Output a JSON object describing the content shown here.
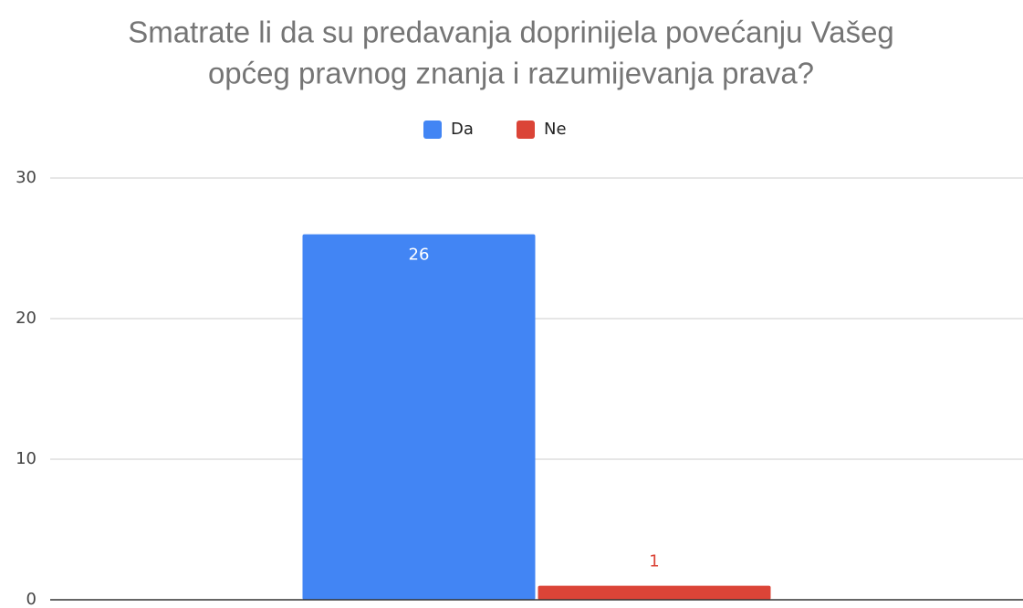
{
  "chart_data": {
    "type": "bar",
    "title": [
      "Smatrate li da su predavanja doprinijela povećanju Vašeg",
      "općeg pravnog znanja i razumijevanja prava?"
    ],
    "categories": [
      null
    ],
    "series": [
      {
        "name": "Da",
        "color": "#4285f4",
        "values": [
          26
        ]
      },
      {
        "name": "Ne",
        "color": "#db4437",
        "values": [
          1
        ]
      }
    ],
    "ylim": [
      0,
      30
    ],
    "yticks": [
      0,
      10,
      20,
      30
    ],
    "grid": true,
    "legend": "top"
  }
}
